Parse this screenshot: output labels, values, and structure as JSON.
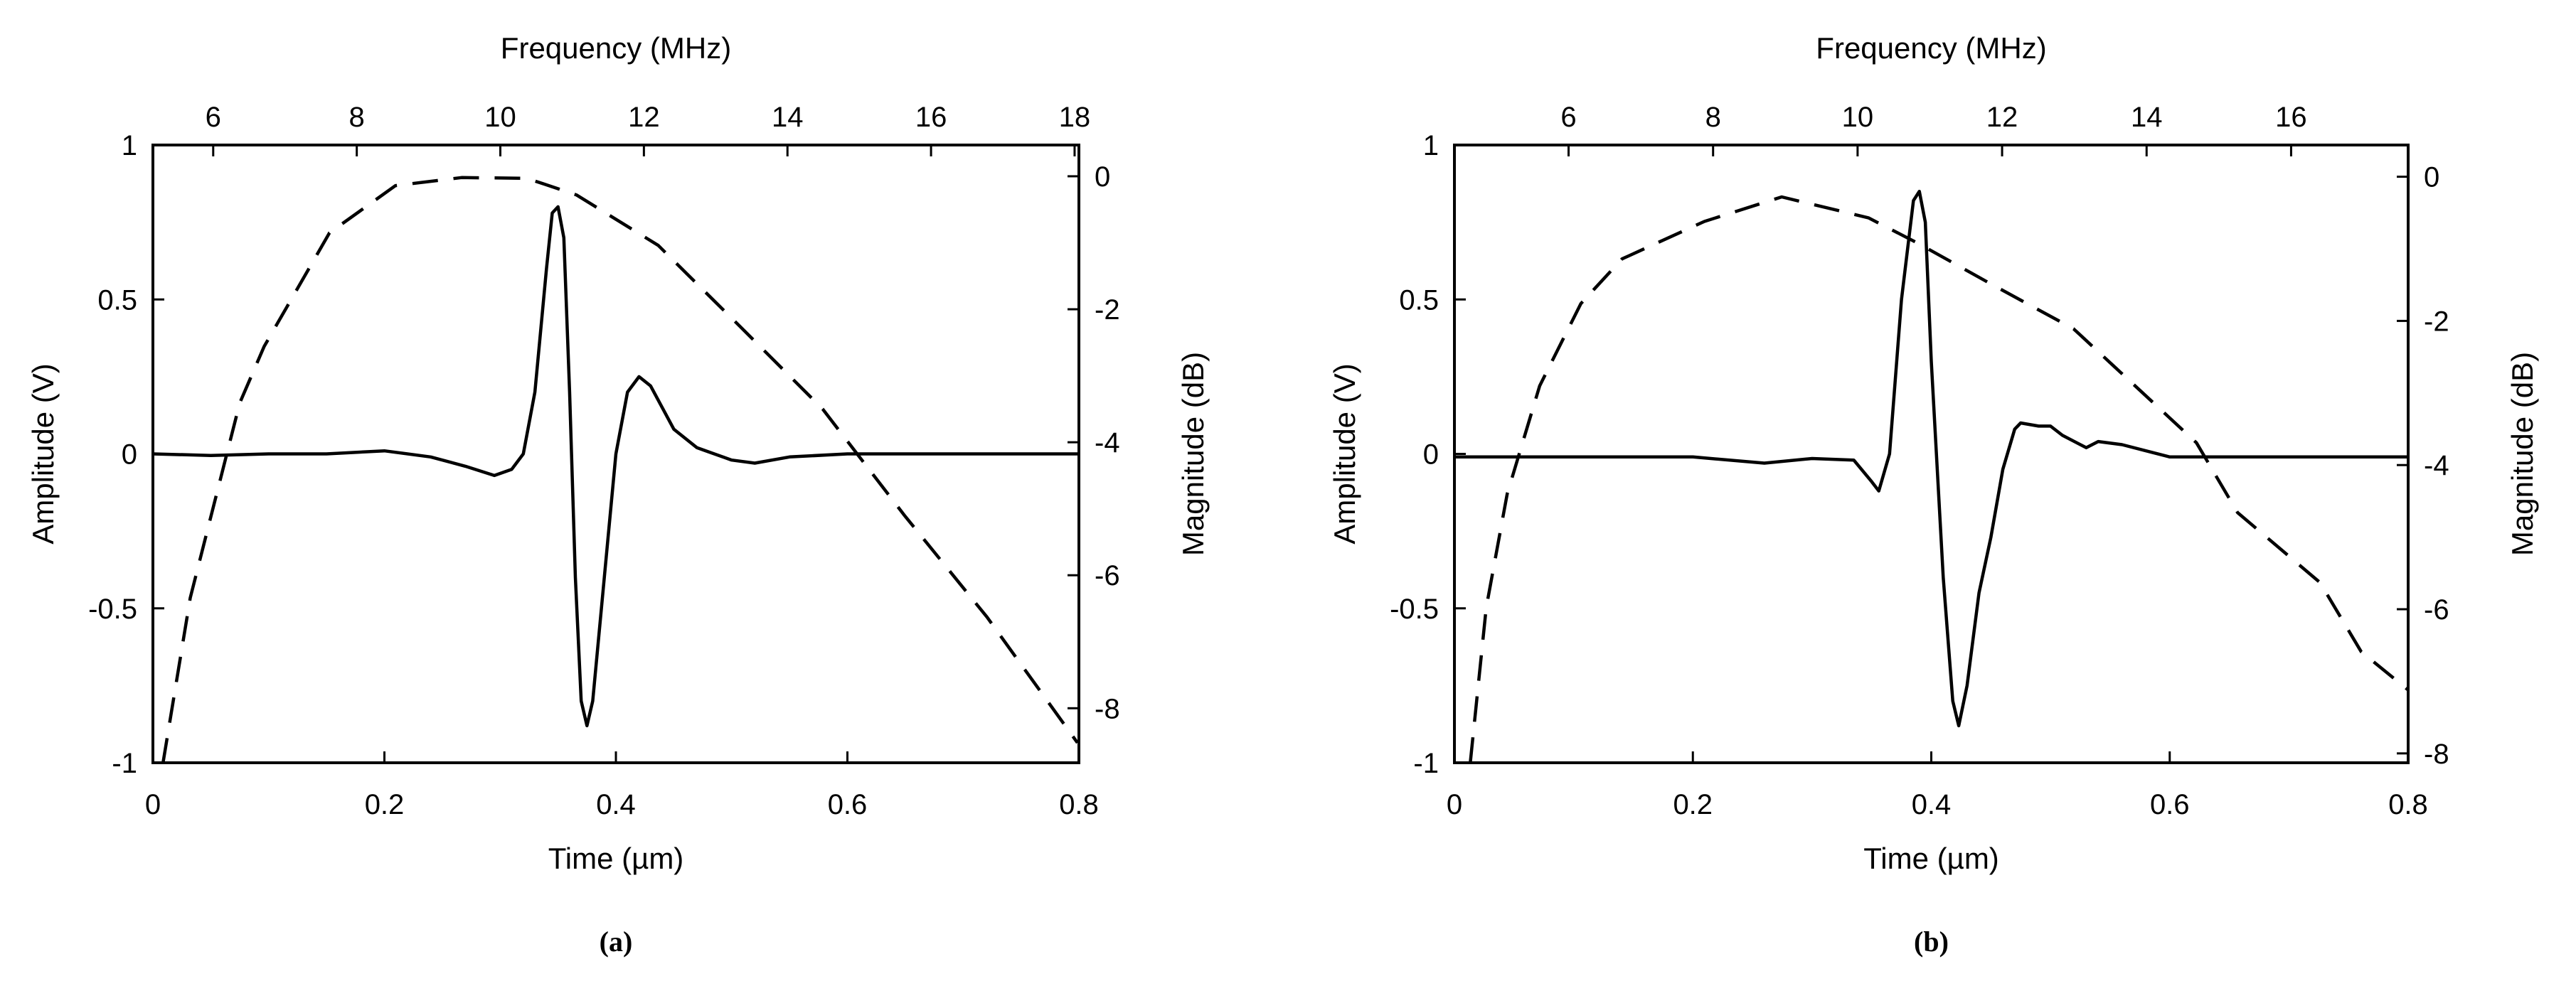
{
  "chart_data": [
    {
      "type": "line",
      "caption": "(a)",
      "xlabel": "Time (µm)",
      "ylabel": "Amplitude (V)",
      "x2label": "Frequency (MHz)",
      "y2label": "Magnitude (dB)",
      "xlim": [
        0,
        0.8
      ],
      "ylim": [
        -1,
        1
      ],
      "x2lim": [
        5.16,
        18.06
      ],
      "y2lim": [
        -8.82,
        0.47
      ],
      "xticks": [
        0,
        0.2,
        0.4,
        0.6,
        0.8
      ],
      "yticks": [
        -1,
        -0.5,
        0,
        0.5,
        1
      ],
      "x2ticks": [
        6,
        8,
        10,
        12,
        14,
        16,
        18
      ],
      "y2ticks": [
        -8,
        -6,
        -4,
        -2,
        0
      ],
      "grid": false,
      "series": [
        {
          "style": "solid",
          "axes": "time-amplitude",
          "color": "#000000",
          "x": [
            0,
            0.05,
            0.1,
            0.15,
            0.2,
            0.24,
            0.27,
            0.295,
            0.31,
            0.32,
            0.33,
            0.34,
            0.345,
            0.35,
            0.355,
            0.36,
            0.365,
            0.37,
            0.375,
            0.38,
            0.39,
            0.4,
            0.41,
            0.42,
            0.43,
            0.44,
            0.45,
            0.47,
            0.5,
            0.52,
            0.55,
            0.6,
            0.7,
            0.8
          ],
          "y": [
            0,
            -0.005,
            0,
            0,
            0.01,
            -0.01,
            -0.04,
            -0.07,
            -0.05,
            0,
            0.2,
            0.6,
            0.78,
            0.8,
            0.7,
            0.2,
            -0.4,
            -0.8,
            -0.88,
            -0.8,
            -0.4,
            0,
            0.2,
            0.25,
            0.22,
            0.15,
            0.08,
            0.02,
            -0.02,
            -0.03,
            -0.01,
            0,
            0,
            0
          ]
        },
        {
          "style": "dashed",
          "axes": "frequency-magnitude",
          "color": "#000000",
          "x": [
            5.3,
            5.68,
            6.37,
            6.71,
            7.62,
            8.54,
            9.46,
            10.37,
            11.06,
            12.2,
            13.35,
            14.49,
            15.63,
            16.78,
            18.04
          ],
          "y": [
            -8.83,
            -6.34,
            -3.41,
            -2.56,
            -0.85,
            -0.14,
            -0.02,
            -0.03,
            -0.28,
            -1.04,
            -2.27,
            -3.5,
            -5.1,
            -6.63,
            -8.52
          ]
        }
      ]
    },
    {
      "type": "line",
      "caption": "(b)",
      "xlabel": "Time (µm)",
      "ylabel": "Amplitude (V)",
      "x2label": "Frequency (MHz)",
      "y2label": "Magnitude (dB)",
      "xlim": [
        0,
        0.8
      ],
      "ylim": [
        -1,
        1
      ],
      "x2lim": [
        4.42,
        17.62
      ],
      "y2lim": [
        -8.13,
        0.44
      ],
      "xticks": [
        0,
        0.2,
        0.4,
        0.6,
        0.8
      ],
      "yticks": [
        -1,
        -0.5,
        0,
        0.5,
        1
      ],
      "x2ticks": [
        6,
        8,
        10,
        12,
        14,
        16
      ],
      "y2ticks": [
        -8,
        -6,
        -4,
        -2,
        0
      ],
      "grid": false,
      "series": [
        {
          "style": "solid",
          "axes": "time-amplitude",
          "color": "#000000",
          "x": [
            0,
            0.1,
            0.2,
            0.26,
            0.3,
            0.335,
            0.35,
            0.356,
            0.365,
            0.375,
            0.385,
            0.39,
            0.395,
            0.4,
            0.41,
            0.418,
            0.423,
            0.43,
            0.44,
            0.45,
            0.46,
            0.47,
            0.475,
            0.49,
            0.5,
            0.51,
            0.53,
            0.54,
            0.56,
            0.6,
            0.65,
            0.7,
            0.8
          ],
          "y": [
            -0.01,
            -0.01,
            -0.01,
            -0.03,
            -0.015,
            -0.02,
            -0.09,
            -0.12,
            0,
            0.5,
            0.82,
            0.85,
            0.75,
            0.3,
            -0.4,
            -0.8,
            -0.88,
            -0.75,
            -0.45,
            -0.27,
            -0.05,
            0.08,
            0.1,
            0.09,
            0.09,
            0.06,
            0.02,
            0.04,
            0.03,
            -0.01,
            -0.01,
            -0.01,
            -0.01
          ]
        },
        {
          "style": "dashed",
          "axes": "frequency-magnitude",
          "color": "#000000",
          "x": [
            4.64,
            4.86,
            5.15,
            5.6,
            6.17,
            6.74,
            7.88,
            8.95,
            10.15,
            10.83,
            11.85,
            12.99,
            13.56,
            14.69,
            15.26,
            16.4,
            16.97,
            17.62
          ],
          "y": [
            -8.13,
            -5.98,
            -4.4,
            -2.9,
            -1.76,
            -1.14,
            -0.62,
            -0.28,
            -0.57,
            -0.92,
            -1.49,
            -2.11,
            -2.64,
            -3.69,
            -4.66,
            -5.63,
            -6.59,
            -7.12
          ]
        }
      ]
    }
  ]
}
